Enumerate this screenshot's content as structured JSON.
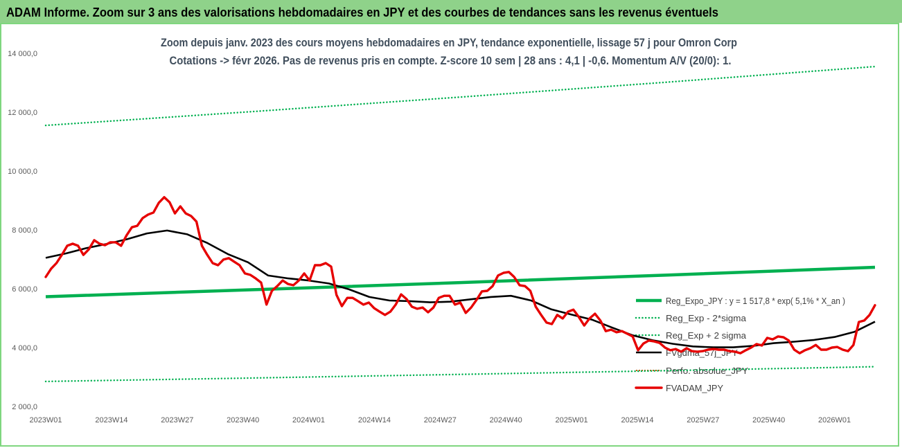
{
  "header": {
    "title": "ADAM Informe. Zoom sur 3 ans des valorisations hebdomadaires en JPY et des courbes de tendances sans les revenus éventuels",
    "bg_color": "#8fd28a",
    "frame_color": "#7fd67f"
  },
  "chart_data": {
    "type": "line",
    "title": "Zoom depuis janv. 2023 des cours moyens hebdomadaires en JPY, tendance exponentielle, lissage 57 j pour Omron Corp",
    "subtitle": "Cotations -> févr 2026. Pas de revenus pris en compte. Z-score 10 sem | 28 ans : 4,1 | -0,6. Momentum A/V (20/0): 1.",
    "xlim": [
      0,
      164
    ],
    "ylim": [
      2000,
      14000
    ],
    "grid": false,
    "y_ticks": [
      {
        "value": 14000,
        "label": "14 000,0"
      },
      {
        "value": 12000,
        "label": "12 000,0"
      },
      {
        "value": 10000,
        "label": "10 000,0"
      },
      {
        "value": 8000,
        "label": "8 000,0"
      },
      {
        "value": 6000,
        "label": "6 000,0"
      },
      {
        "value": 4000,
        "label": "4 000,0"
      },
      {
        "value": 2000,
        "label": "2 000,0"
      }
    ],
    "x_ticks": [
      {
        "week": 0,
        "label": "2023W01"
      },
      {
        "week": 13,
        "label": "2023W14"
      },
      {
        "week": 26,
        "label": "2023W27"
      },
      {
        "week": 39,
        "label": "2023W40"
      },
      {
        "week": 52,
        "label": "2024W01"
      },
      {
        "week": 65,
        "label": "2024W14"
      },
      {
        "week": 78,
        "label": "2024W27"
      },
      {
        "week": 91,
        "label": "2024W40"
      },
      {
        "week": 104,
        "label": "2025W01"
      },
      {
        "week": 117,
        "label": "2025W14"
      },
      {
        "week": 130,
        "label": "2025W27"
      },
      {
        "week": 143,
        "label": "2025W40"
      },
      {
        "week": 156,
        "label": "2026W01"
      }
    ],
    "series": [
      {
        "name": "Reg_Expo_JPY : y = 1 517,8 * exp( 5,1% * X_an )",
        "color": "#00b050",
        "values": [
          5730,
          5966,
          6210,
          6465,
          6730
        ]
      },
      {
        "name": "Reg_Exp - 2*sigma",
        "color": "#00b050",
        "values": [
          2850,
          2967,
          3090,
          3217,
          3350
        ]
      },
      {
        "name": "Reg_Exp + 2 sigma",
        "color": "#00b050",
        "values": [
          11550,
          12021,
          12512,
          13022,
          13550
        ]
      },
      {
        "name": "FVgdma_57j_JPY",
        "color": "#000000",
        "values": [
          7050,
          7200,
          7380,
          7520,
          7680,
          7880,
          7980,
          7850,
          7550,
          7180,
          6900,
          6450,
          6350,
          6280,
          6180,
          5980,
          5720,
          5600,
          5580,
          5540,
          5560,
          5640,
          5720,
          5760,
          5600,
          5300,
          5120,
          4950,
          4680,
          4420,
          4250,
          4130,
          4040,
          4010,
          4010,
          4060,
          4150,
          4200,
          4260,
          4360,
          4540,
          4880
        ]
      },
      {
        "name": "Perfo. absolue_JPY",
        "color": "#c55a11"
      },
      {
        "name": "FVADAM_JPY",
        "color": "#e60000",
        "values": [
          6400,
          6680,
          6870,
          7150,
          7460,
          7530,
          7460,
          7150,
          7340,
          7650,
          7530,
          7480,
          7580,
          7580,
          7460,
          7810,
          8090,
          8140,
          8400,
          8520,
          8590,
          8920,
          9110,
          8940,
          8560,
          8800,
          8560,
          8470,
          8280,
          7460,
          7150,
          6870,
          6800,
          6990,
          7040,
          6920,
          6800,
          6520,
          6470,
          6350,
          6210,
          5460,
          5930,
          6090,
          6280,
          6160,
          6120,
          6280,
          6520,
          6280,
          6800,
          6800,
          6870,
          6750,
          5790,
          5410,
          5690,
          5690,
          5580,
          5460,
          5530,
          5340,
          5220,
          5110,
          5220,
          5460,
          5810,
          5650,
          5390,
          5320,
          5360,
          5200,
          5360,
          5690,
          5760,
          5760,
          5460,
          5530,
          5180,
          5360,
          5620,
          5910,
          5930,
          6090,
          6450,
          6540,
          6570,
          6400,
          6120,
          6090,
          5930,
          5390,
          5110,
          4850,
          4800,
          5110,
          4990,
          5220,
          5290,
          5040,
          4750,
          4990,
          5150,
          4920,
          4560,
          4610,
          4520,
          4560,
          4470,
          4380,
          3910,
          4140,
          4240,
          4210,
          4160,
          4000,
          3910,
          3950,
          3860,
          3980,
          3880,
          3860,
          3880,
          3930,
          3950,
          3930,
          3930,
          3880,
          3860,
          3810,
          3910,
          4000,
          4120,
          4070,
          4330,
          4280,
          4380,
          4350,
          4240,
          3930,
          3810,
          3910,
          3980,
          4090,
          3930,
          3930,
          4000,
          4020,
          3930,
          3880,
          4090,
          4870,
          4920,
          5110,
          5440
        ]
      }
    ]
  }
}
